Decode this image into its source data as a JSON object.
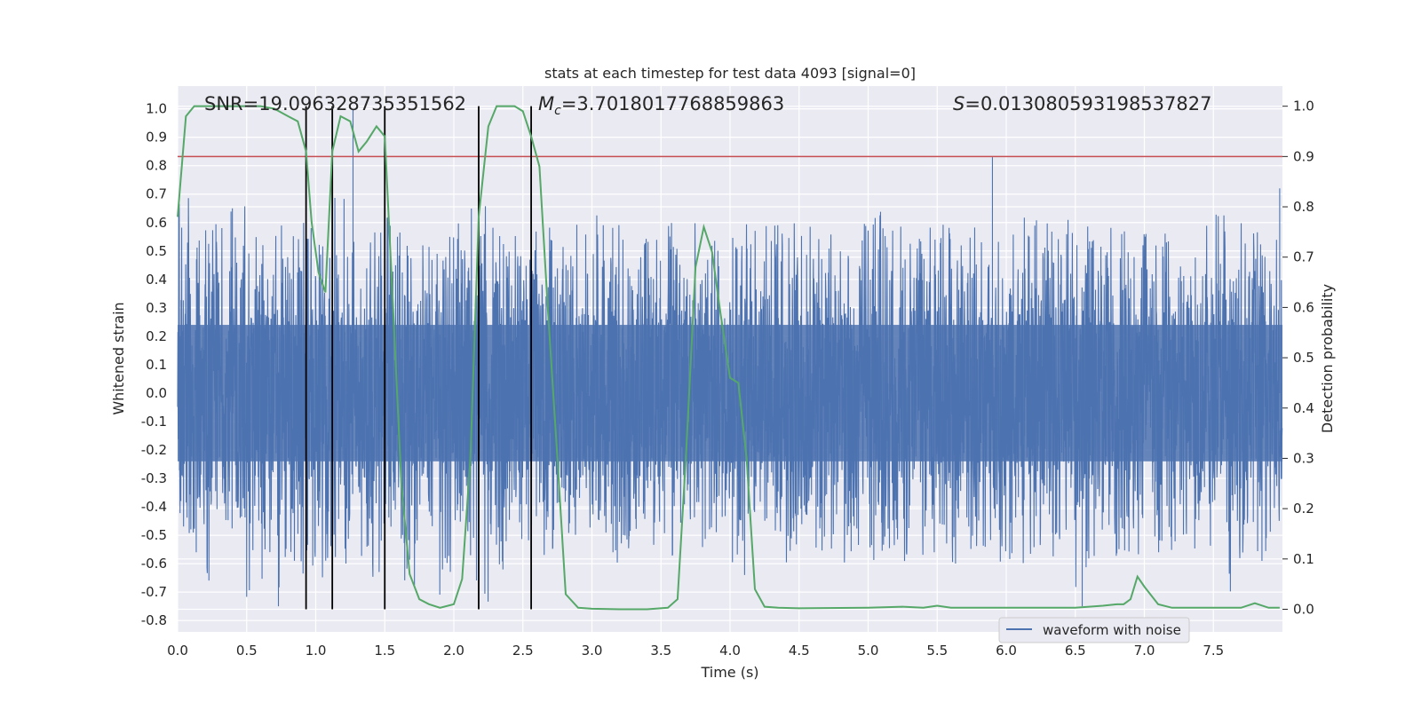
{
  "chart_data": {
    "type": "line",
    "title": "stats at each timestep for test data 4093 [signal=0]",
    "xlabel": "Time (s)",
    "ylabel": "Whitened strain",
    "y2label": "Detection probability",
    "xlim": [
      0,
      8
    ],
    "ylim": [
      -0.84,
      1.08
    ],
    "y2lim": [
      -0.045,
      1.04
    ],
    "xticks": [
      "0.0",
      "0.5",
      "1.0",
      "1.5",
      "2.0",
      "2.5",
      "3.0",
      "3.5",
      "4.0",
      "4.5",
      "5.0",
      "5.5",
      "6.0",
      "6.5",
      "7.0",
      "7.5"
    ],
    "yticks": [
      "1.0",
      "0.9",
      "0.8",
      "0.7",
      "0.6",
      "0.5",
      "0.4",
      "0.3",
      "0.2",
      "0.1",
      "0.0",
      "-0.1",
      "-0.2",
      "-0.3",
      "-0.4",
      "-0.5",
      "-0.6",
      "-0.7",
      "-0.8"
    ],
    "y2ticks": [
      "1.0",
      "0.9",
      "0.8",
      "0.7",
      "0.6",
      "0.5",
      "0.4",
      "0.3",
      "0.2",
      "0.1",
      "0.0"
    ],
    "annotations": {
      "snr": "SNR=19.096328735351562",
      "mc_symbol": "M",
      "mc_sub": "c",
      "mc_value": "=3.7018017768859863",
      "s_symbol": "S",
      "s_value": "=0.013080593198537827"
    },
    "legend": {
      "label": "waveform with noise",
      "position": "lower-right"
    },
    "threshold": 0.9,
    "vlines": [
      0.93,
      1.12,
      1.5,
      2.18,
      2.56
    ],
    "waveform": {
      "name": "waveform with noise",
      "color": "#4c72b0",
      "typical_min": -0.3,
      "typical_max": 0.3,
      "peaks": [
        0.71,
        0.6,
        0.65,
        0.68,
        0.55,
        0.6,
        0.65,
        0.6,
        0.6,
        0.7,
        0.63,
        0.58,
        0.65,
        0.6,
        0.58,
        0.6,
        0.6,
        0.67,
        0.6,
        0.6,
        0.6,
        0.6,
        0.55,
        0.6,
        0.63,
        0.6,
        0.6,
        0.55,
        0.6,
        0.6,
        0.6,
        0.58,
        0.62,
        0.6,
        0.6,
        0.6,
        0.6,
        0.6,
        0.6,
        0.6,
        0.64,
        0.6,
        0.6,
        0.63,
        0.6,
        0.6,
        0.6,
        0.6,
        0.6,
        0.62,
        0.6,
        0.62,
        0.6,
        0.6,
        0.6,
        0.6,
        0.6,
        0.6,
        0.6,
        0.6,
        0.65,
        0.6,
        0.6,
        0.6
      ],
      "troughs": [
        -0.5,
        -0.68,
        -0.6,
        -0.55,
        -0.75,
        -0.72,
        -0.6,
        -0.7,
        -0.65,
        -0.62,
        -0.6,
        -0.7,
        -0.6,
        -0.68,
        -0.6,
        -0.73,
        -0.6,
        -0.75,
        -0.68,
        -0.6,
        -0.62,
        -0.6,
        -0.55,
        -0.55,
        -0.6,
        -0.6,
        -0.55,
        -0.6,
        -0.68,
        -0.6,
        -0.55,
        -0.6,
        -0.65,
        -0.6,
        -0.6,
        -0.6,
        -0.6,
        -0.6,
        -0.6,
        -0.6,
        -0.6,
        -0.6,
        -0.6,
        -0.6,
        -0.6,
        -0.6,
        -0.6,
        -0.6,
        -0.6,
        -0.6,
        -0.6,
        -0.6,
        -0.75,
        -0.6,
        -0.6,
        -0.6,
        -0.6,
        -0.6,
        -0.6,
        -0.6,
        -0.72,
        -0.6,
        -0.6,
        -0.6
      ],
      "notable_spikes": [
        [
          1.27,
          1.0
        ],
        [
          5.9,
          0.83
        ],
        [
          7.98,
          0.72
        ],
        [
          6.55,
          -0.75
        ],
        [
          0.73,
          -0.75
        ]
      ]
    },
    "probability": {
      "name": "detection probability",
      "color": "#55a868",
      "x": [
        0.0,
        0.06,
        0.12,
        0.2,
        0.3,
        0.4,
        0.5,
        0.6,
        0.7,
        0.8,
        0.87,
        0.93,
        0.97,
        1.02,
        1.07,
        1.12,
        1.18,
        1.25,
        1.31,
        1.37,
        1.44,
        1.5,
        1.56,
        1.62,
        1.68,
        1.75,
        1.82,
        1.9,
        2.0,
        2.06,
        2.12,
        2.18,
        2.25,
        2.31,
        2.37,
        2.44,
        2.5,
        2.56,
        2.62,
        2.68,
        2.75,
        2.81,
        2.9,
        3.0,
        3.2,
        3.4,
        3.55,
        3.62,
        3.68,
        3.75,
        3.81,
        3.87,
        3.93,
        4.0,
        4.06,
        4.12,
        4.18,
        4.25,
        4.35,
        4.5,
        5.0,
        5.25,
        5.4,
        5.5,
        5.6,
        5.8,
        6.0,
        6.2,
        6.5,
        6.7,
        6.8,
        6.85,
        6.9,
        6.95,
        7.0,
        7.1,
        7.2,
        7.5,
        7.7,
        7.8,
        7.9,
        7.98
      ],
      "y": [
        0.78,
        0.98,
        1.0,
        1.0,
        1.0,
        1.0,
        1.0,
        1.0,
        0.995,
        0.98,
        0.97,
        0.91,
        0.77,
        0.67,
        0.63,
        0.91,
        0.98,
        0.97,
        0.91,
        0.93,
        0.96,
        0.94,
        0.6,
        0.25,
        0.07,
        0.02,
        0.01,
        0.003,
        0.01,
        0.06,
        0.3,
        0.78,
        0.96,
        1.0,
        1.0,
        1.0,
        0.99,
        0.94,
        0.88,
        0.6,
        0.3,
        0.03,
        0.003,
        0.001,
        0.0,
        0.0,
        0.003,
        0.02,
        0.3,
        0.68,
        0.76,
        0.71,
        0.59,
        0.46,
        0.45,
        0.3,
        0.04,
        0.005,
        0.003,
        0.002,
        0.003,
        0.005,
        0.003,
        0.007,
        0.003,
        0.003,
        0.003,
        0.003,
        0.003,
        0.007,
        0.01,
        0.01,
        0.02,
        0.065,
        0.045,
        0.01,
        0.003,
        0.003,
        0.003,
        0.012,
        0.003,
        0.003
      ]
    }
  }
}
